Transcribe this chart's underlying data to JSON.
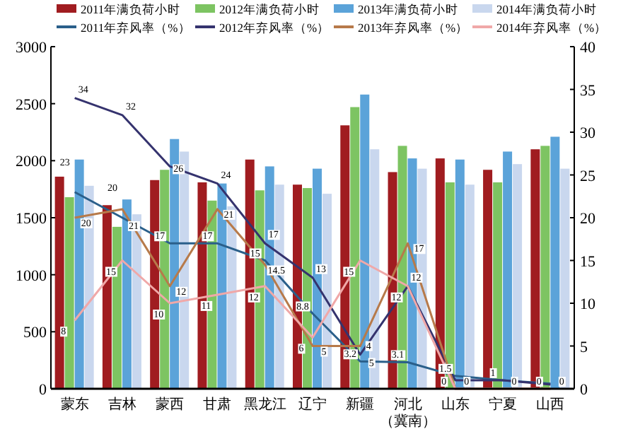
{
  "chart_data": {
    "type": "bar",
    "categories": [
      "蒙东",
      "吉林",
      "蒙西",
      "甘肃",
      "黑龙江",
      "辽宁",
      "新疆",
      "河北（冀南）",
      "山东",
      "宁夏",
      "山西"
    ],
    "series": [
      {
        "name": "2011年满负荷小时",
        "color": "#a01c20",
        "values": [
          1860,
          1610,
          1830,
          1810,
          2010,
          1790,
          2310,
          1900,
          2020,
          1920,
          2100
        ]
      },
      {
        "name": "2012年满负荷小时",
        "color": "#7dc462",
        "values": [
          1680,
          1420,
          1920,
          1650,
          1740,
          1760,
          2470,
          2130,
          1810,
          1810,
          2130
        ]
      },
      {
        "name": "2013年满负荷小时",
        "color": "#5ba3d9",
        "values": [
          2010,
          1660,
          2190,
          1800,
          1950,
          1930,
          2580,
          2020,
          2010,
          2080,
          2210
        ]
      },
      {
        "name": "2014年满负荷小时",
        "color": "#c9d7ee",
        "values": [
          1780,
          1530,
          2080,
          1600,
          1790,
          1710,
          2100,
          1930,
          1790,
          1970,
          1930
        ]
      },
      {
        "name": "2011年弃风率（%）",
        "type": "line",
        "axis": "y2",
        "color": "#2a5f8a",
        "values": [
          23,
          20,
          17,
          17,
          15,
          8.8,
          3.2,
          3.1,
          1.5,
          1,
          0.6
        ],
        "value_labels": [
          "23",
          "20",
          "17",
          "17",
          "15",
          "8.8",
          "3.2",
          "3.1",
          "1.5",
          "1",
          null
        ]
      },
      {
        "name": "2012年弃风率（%）",
        "type": "line",
        "axis": "y2",
        "color": "#35336e",
        "values": [
          34,
          32,
          26,
          24,
          17,
          13,
          4,
          12,
          1,
          1,
          0.5
        ],
        "value_labels": [
          "34",
          "32",
          "26",
          "24",
          "17",
          "13",
          "4",
          "12",
          null,
          null,
          null
        ]
      },
      {
        "name": "2013年弃风率（%）",
        "type": "line",
        "axis": "y2",
        "color": "#b77a4a",
        "values": [
          20,
          21,
          12,
          21,
          14.5,
          5,
          5,
          17,
          0,
          0,
          0
        ],
        "value_labels": [
          "20",
          "21",
          "12",
          "21",
          "14.5",
          "5",
          "5",
          "17",
          "0",
          "0",
          "0"
        ]
      },
      {
        "name": "2014年弃风率（%）",
        "type": "line",
        "axis": "y2",
        "color": "#f0a8a8",
        "values": [
          8,
          15,
          10,
          11,
          12,
          6,
          15,
          12,
          0,
          null,
          0
        ],
        "value_labels": [
          "8",
          "15",
          "10",
          "11",
          "12",
          "6",
          "15",
          "12",
          "0",
          null,
          "0"
        ]
      }
    ],
    "ylim": [
      0,
      3000
    ],
    "yticks": [
      0,
      500,
      1000,
      1500,
      2000,
      2500,
      3000
    ],
    "y2lim": [
      0,
      40
    ],
    "y2ticks": [
      0,
      5,
      10,
      15,
      20,
      25,
      30,
      35,
      40
    ],
    "legend": "top",
    "grid": false
  }
}
